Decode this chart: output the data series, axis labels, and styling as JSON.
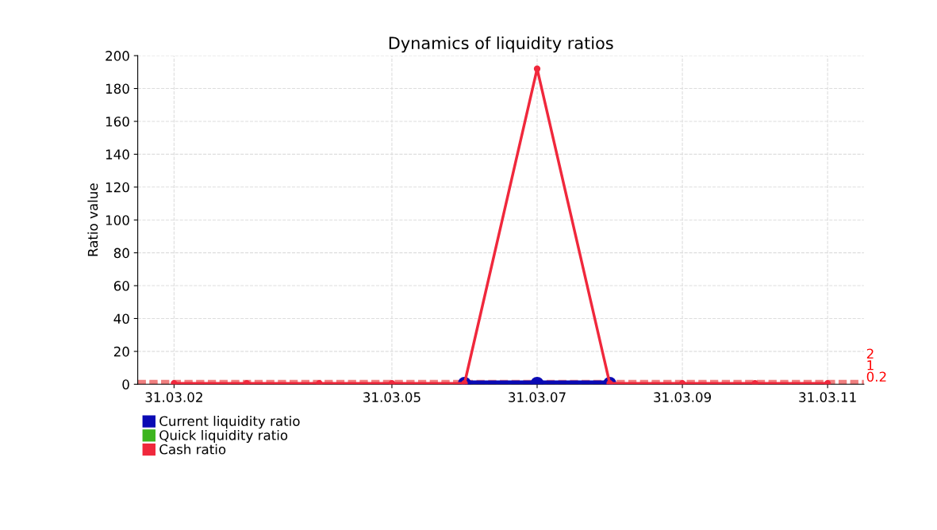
{
  "chart_data": {
    "type": "line",
    "title": "Dynamics of liquidity ratios",
    "ylabel": "Ratio value",
    "categories": [
      "31.03.02",
      null,
      null,
      "31.03.05",
      null,
      "31.03.07",
      null,
      "31.03.09",
      null,
      "31.03.11"
    ],
    "series": [
      {
        "name": "Current liquidity ratio",
        "color": "#0a0ab4",
        "values": [
          null,
          null,
          null,
          null,
          0.5,
          0.5,
          0.5,
          null,
          null,
          null
        ]
      },
      {
        "name": "Quick liquidity ratio",
        "color": "#3cb41e",
        "values": [
          null,
          null,
          null,
          null,
          null,
          null,
          null,
          null,
          null,
          null
        ]
      },
      {
        "name": "Cash ratio",
        "color": "#f0283c",
        "values": [
          0.5,
          0.5,
          0.5,
          0.5,
          0.5,
          192,
          0.5,
          0.5,
          0.5,
          0.5
        ]
      }
    ],
    "ylim": [
      0,
      200
    ],
    "yticks": [
      0,
      20,
      40,
      60,
      80,
      100,
      120,
      140,
      160,
      180,
      200
    ],
    "ref_lines": [
      {
        "axis": "y",
        "value": 0.2,
        "label": "0.2",
        "color": "#f08080",
        "line_style": "dashed"
      },
      {
        "axis": "y",
        "value": 1,
        "label": "1",
        "color": "#f08080",
        "line_style": "dashed"
      },
      {
        "axis": "y",
        "value": 2,
        "label": "2",
        "color": "#f08080",
        "line_style": "dashed"
      }
    ],
    "grid": true,
    "legend": "bottom left",
    "marker": "circle",
    "line_style": "solid"
  }
}
